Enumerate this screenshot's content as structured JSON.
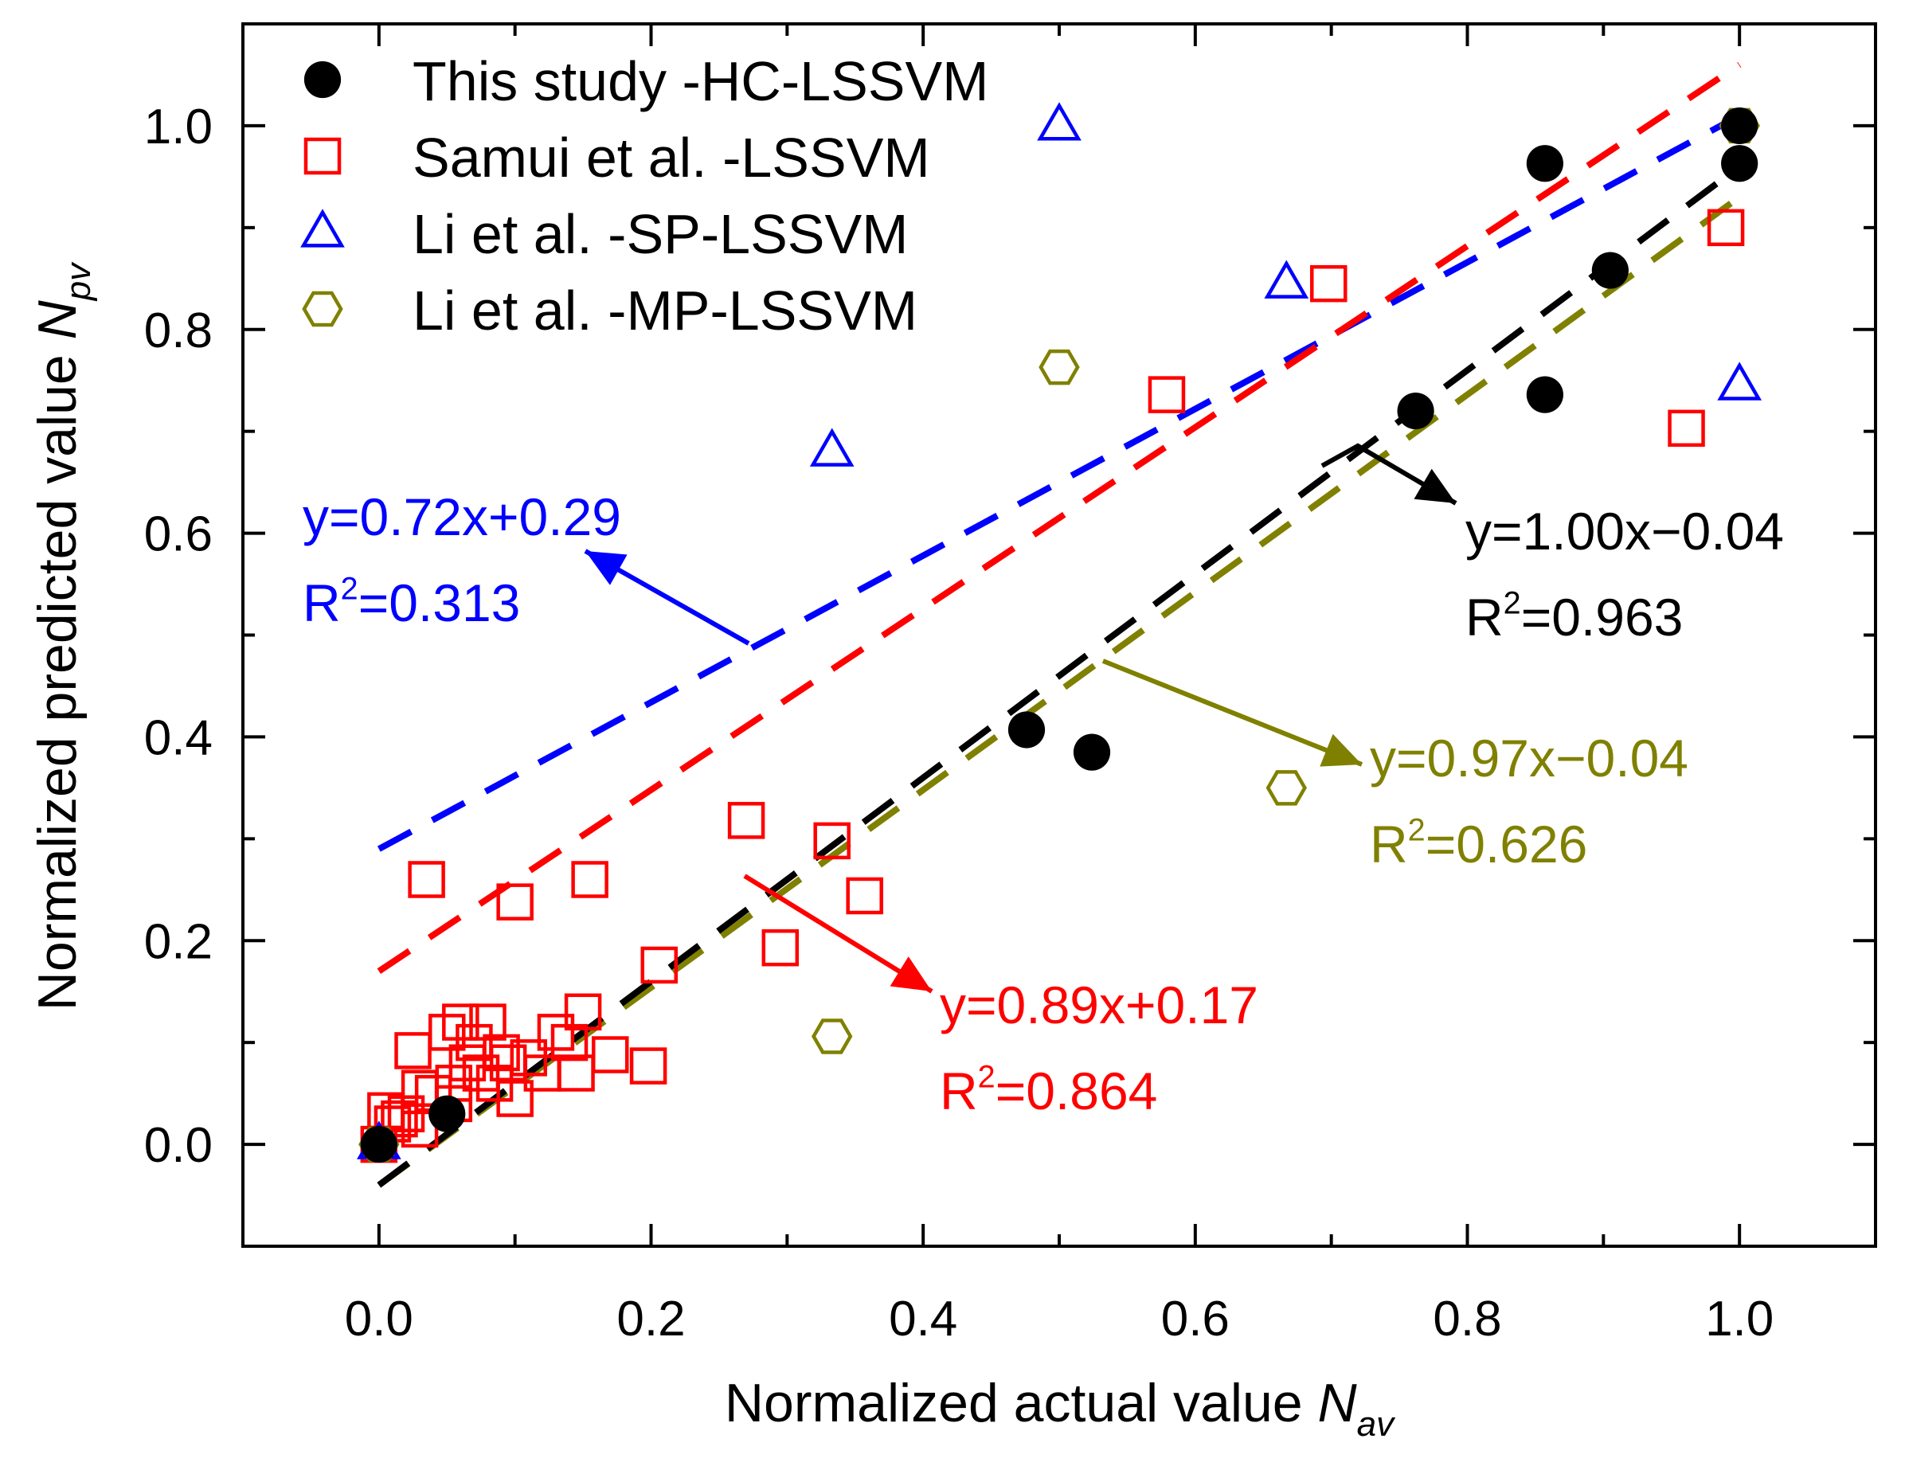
{
  "chart_data": {
    "type": "scatter",
    "xlabel": "Normalized actual value ",
    "xlabel_var": "N",
    "xlabel_sub": "av",
    "ylabel": "Normalized predicted value ",
    "ylabel_var": "N",
    "ylabel_sub": "pv",
    "xlim": [
      -0.1,
      1.1
    ],
    "ylim": [
      -0.1,
      1.1
    ],
    "xticks": [
      0.0,
      0.2,
      0.4,
      0.6,
      0.8,
      1.0
    ],
    "xtick_labels": [
      "0.0",
      "0.2",
      "0.4",
      "0.6",
      "0.8",
      "1.0"
    ],
    "yticks": [
      0.0,
      0.2,
      0.4,
      0.6,
      0.8,
      1.0
    ],
    "ytick_labels": [
      "0.0",
      "0.2",
      "0.4",
      "0.6",
      "0.8",
      "1.0"
    ],
    "grid": false,
    "legend_position": "top-left",
    "series": [
      {
        "name": "This study -HC-LSSVM",
        "marker": "filled-circle",
        "color": "#000000",
        "points": [
          [
            0.0,
            0.0
          ],
          [
            0.05,
            0.03
          ],
          [
            0.476,
            0.407
          ],
          [
            0.524,
            0.385
          ],
          [
            0.762,
            0.72
          ],
          [
            0.857,
            0.963
          ],
          [
            0.857,
            0.736
          ],
          [
            0.905,
            0.858
          ],
          [
            1.0,
            0.963
          ],
          [
            1.0,
            1.0
          ]
        ],
        "fit": {
          "slope": 1.0,
          "intercept": -0.04,
          "x_range": [
            0.0,
            1.0
          ],
          "equation": "y=1.00x−0.04",
          "r2_label": "R",
          "r2_value": "=0.963"
        }
      },
      {
        "name": "Samui et al. -LSSVM",
        "marker": "open-square",
        "color": "#ff0000",
        "points": [
          [
            0.0,
            0.0
          ],
          [
            0.005,
            0.033
          ],
          [
            0.01,
            0.02
          ],
          [
            0.015,
            0.025
          ],
          [
            0.02,
            0.03
          ],
          [
            0.025,
            0.092
          ],
          [
            0.03,
            0.055
          ],
          [
            0.03,
            0.015
          ],
          [
            0.035,
            0.26
          ],
          [
            0.04,
            0.05
          ],
          [
            0.05,
            0.11
          ],
          [
            0.055,
            0.06
          ],
          [
            0.055,
            0.04
          ],
          [
            0.06,
            0.12
          ],
          [
            0.065,
            0.08
          ],
          [
            0.07,
            0.1
          ],
          [
            0.075,
            0.07
          ],
          [
            0.08,
            0.12
          ],
          [
            0.085,
            0.06
          ],
          [
            0.09,
            0.09
          ],
          [
            0.095,
            0.08
          ],
          [
            0.1,
            0.238
          ],
          [
            0.1,
            0.045
          ],
          [
            0.11,
            0.085
          ],
          [
            0.12,
            0.07
          ],
          [
            0.13,
            0.11
          ],
          [
            0.14,
            0.1
          ],
          [
            0.145,
            0.07
          ],
          [
            0.15,
            0.13
          ],
          [
            0.155,
            0.26
          ],
          [
            0.17,
            0.088
          ],
          [
            0.198,
            0.077
          ],
          [
            0.206,
            0.176
          ],
          [
            0.27,
            0.318
          ],
          [
            0.295,
            0.193
          ],
          [
            0.333,
            0.298
          ],
          [
            0.357,
            0.244
          ],
          [
            0.579,
            0.736
          ],
          [
            0.698,
            0.845
          ],
          [
            0.961,
            0.703
          ],
          [
            0.99,
            0.9
          ]
        ],
        "fit": {
          "slope": 0.89,
          "intercept": 0.17,
          "x_range": [
            0.0,
            1.0
          ],
          "equation": "y=0.89x+0.17",
          "r2_label": "R",
          "r2_value": "=0.864"
        }
      },
      {
        "name": "Li et al. -SP-LSSVM",
        "marker": "open-triangle",
        "color": "#0000ff",
        "points": [
          [
            0.0,
            0.0
          ],
          [
            0.333,
            0.68
          ],
          [
            0.5,
            1.0
          ],
          [
            0.667,
            0.845
          ],
          [
            1.0,
            0.745
          ]
        ],
        "fit": {
          "slope": 0.72,
          "intercept": 0.29,
          "x_range": [
            0.0,
            1.0
          ],
          "equation": "y=0.72x+0.29",
          "r2_label": "R",
          "r2_value": "=0.313"
        }
      },
      {
        "name": "Li et al. -MP-LSSVM",
        "marker": "open-hexagon",
        "color": "#808000",
        "points": [
          [
            0.0,
            0.0
          ],
          [
            0.333,
            0.106
          ],
          [
            0.5,
            0.763
          ],
          [
            0.667,
            0.35
          ],
          [
            1.0,
            1.0
          ]
        ],
        "fit": {
          "slope": 0.97,
          "intercept": -0.04,
          "x_range": [
            0.0,
            1.0
          ],
          "equation": "y=0.97x−0.04",
          "r2_label": "R",
          "r2_value": "=0.626"
        }
      }
    ]
  }
}
